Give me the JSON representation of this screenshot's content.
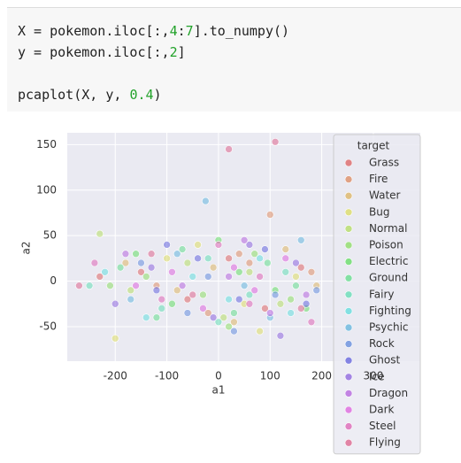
{
  "code": {
    "lines": [
      "X = pokemon.iloc[:,4:7].to_numpy()",
      "y = pokemon.iloc[:,2]",
      "pcaplot(X, y, 0.4)"
    ]
  },
  "chart_data": {
    "type": "scatter",
    "xlabel": "a1",
    "ylabel": "a2",
    "legend_title": "target",
    "legend": "upper right",
    "grid": true,
    "xlim": [
      -293,
      391
    ],
    "ylim": [
      -88,
      163
    ],
    "xticks": [
      -200,
      -100,
      0,
      100,
      200,
      300
    ],
    "yticks": [
      -50,
      0,
      50,
      100,
      150
    ],
    "series": [
      {
        "name": "Grass",
        "color": "#db5757",
        "x": [
          -150,
          -60,
          20,
          90,
          -230,
          160
        ],
        "y": [
          10,
          -20,
          25,
          -30,
          5,
          15
        ]
      },
      {
        "name": "Fire",
        "color": "#db8357",
        "x": [
          100,
          40,
          -120,
          180,
          -20,
          60
        ],
        "y": [
          73,
          30,
          -5,
          10,
          -35,
          20
        ]
      },
      {
        "name": "Water",
        "color": "#dbaf57",
        "x": [
          -80,
          130,
          -180,
          30,
          -10,
          190
        ],
        "y": [
          -10,
          35,
          20,
          -45,
          15,
          -5
        ]
      },
      {
        "name": "Bug",
        "color": "#dbdb57",
        "x": [
          -200,
          -100,
          50,
          150,
          -40,
          80
        ],
        "y": [
          -63,
          25,
          -25,
          5,
          40,
          -55
        ]
      },
      {
        "name": "Normal",
        "color": "#afdb57",
        "x": [
          -230,
          -170,
          -60,
          10,
          120,
          60
        ],
        "y": [
          52,
          -10,
          20,
          -40,
          -25,
          10
        ]
      },
      {
        "name": "Poison",
        "color": "#83db57",
        "x": [
          -140,
          -30,
          70,
          140,
          -210,
          20
        ],
        "y": [
          5,
          -15,
          30,
          -20,
          -5,
          -50
        ]
      },
      {
        "name": "Electric",
        "color": "#57db57",
        "x": [
          -90,
          40,
          110,
          -160,
          0,
          170
        ],
        "y": [
          -25,
          10,
          -10,
          30,
          45,
          -30
        ]
      },
      {
        "name": "Ground",
        "color": "#57db83",
        "x": [
          -190,
          -70,
          30,
          95,
          -120,
          150
        ],
        "y": [
          15,
          35,
          -35,
          20,
          -40,
          -5
        ]
      },
      {
        "name": "Fairy",
        "color": "#57dbaf",
        "x": [
          -250,
          -110,
          -20,
          60,
          130,
          0
        ],
        "y": [
          -5,
          -30,
          25,
          -15,
          10,
          -45
        ]
      },
      {
        "name": "Fighting",
        "color": "#57dbdb",
        "x": [
          -220,
          -140,
          -50,
          80,
          140,
          20
        ],
        "y": [
          10,
          -40,
          5,
          25,
          -35,
          -20
        ]
      },
      {
        "name": "Psychic",
        "color": "#57afdb",
        "x": [
          -25,
          -170,
          -80,
          50,
          160,
          100
        ],
        "y": [
          88,
          -20,
          30,
          -5,
          45,
          -40
        ]
      },
      {
        "name": "Rock",
        "color": "#5783db",
        "x": [
          -150,
          -60,
          30,
          110,
          190,
          -20
        ],
        "y": [
          20,
          -35,
          -55,
          -15,
          -10,
          5
        ]
      },
      {
        "name": "Ghost",
        "color": "#5757db",
        "x": [
          -120,
          -40,
          40,
          90,
          170,
          -100
        ],
        "y": [
          -10,
          25,
          -20,
          35,
          -25,
          40
        ]
      },
      {
        "name": "Ice",
        "color": "#8357db",
        "x": [
          -200,
          -130,
          -10,
          60,
          120,
          150
        ],
        "y": [
          -25,
          15,
          -40,
          40,
          -60,
          20
        ]
      },
      {
        "name": "Dragon",
        "color": "#af57db",
        "x": [
          -180,
          -70,
          20,
          100,
          170,
          50
        ],
        "y": [
          30,
          -5,
          5,
          -35,
          -15,
          45
        ]
      },
      {
        "name": "Dark",
        "color": "#db57db",
        "x": [
          -160,
          -90,
          -30,
          70,
          130,
          30
        ],
        "y": [
          -5,
          10,
          -30,
          -10,
          25,
          15
        ]
      },
      {
        "name": "Steel",
        "color": "#db57af",
        "x": [
          -240,
          -110,
          0,
          80,
          180,
          60
        ],
        "y": [
          20,
          -20,
          40,
          5,
          -45,
          -25
        ]
      },
      {
        "name": "Flying",
        "color": "#db5783",
        "x": [
          -270,
          -130,
          20,
          110,
          160,
          -50
        ],
        "y": [
          -5,
          30,
          145,
          153,
          -30,
          -15
        ]
      }
    ]
  }
}
